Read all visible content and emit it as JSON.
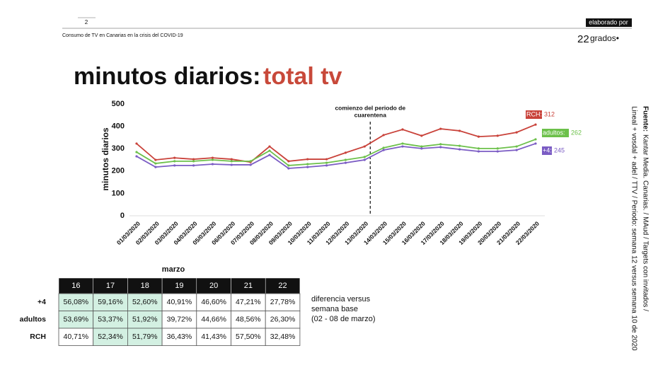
{
  "header": {
    "page_number": "2",
    "subtitle": "Consumo de TV en Canarias en la crisis del COVID-19",
    "credit": "elaborado por",
    "brand_number": "22",
    "brand_text": "grados•"
  },
  "title": {
    "prefix": "minutos diarios:",
    "highlight": "total tv"
  },
  "chart_data": {
    "type": "line",
    "ylabel": "minutos diarios",
    "categories": [
      "01/03/2020",
      "02/03/2020",
      "03/03/2020",
      "04/03/2020",
      "05/03/2020",
      "06/03/2020",
      "07/03/2020",
      "08/03/2020",
      "09/03/2020",
      "10/03/2020",
      "11/03/2020",
      "12/03/2020",
      "13/03/2020",
      "14/03/2020",
      "15/03/2020",
      "16/03/2020",
      "17/03/2020",
      "18/03/2020",
      "19/03/2020",
      "20/03/2020",
      "21/03/2020",
      "22/03/2020"
    ],
    "series": [
      {
        "name": "RCH:",
        "color": "#c9423a",
        "summary_value": 312,
        "values": [
          323,
          250,
          259,
          253,
          259,
          253,
          240,
          310,
          244,
          253,
          253,
          282,
          310,
          361,
          386,
          358,
          389,
          380,
          354,
          358,
          373,
          408
        ]
      },
      {
        "name": "adultos:",
        "color": "#6cc04a",
        "summary_value": 262,
        "values": [
          285,
          234,
          244,
          244,
          250,
          244,
          244,
          291,
          225,
          231,
          237,
          250,
          263,
          304,
          323,
          310,
          320,
          313,
          301,
          301,
          310,
          342
        ]
      },
      {
        "name": "+4:",
        "color": "#7b5cc4",
        "summary_value": 245,
        "values": [
          266,
          218,
          225,
          225,
          231,
          228,
          228,
          272,
          212,
          218,
          225,
          237,
          250,
          294,
          310,
          301,
          307,
          297,
          288,
          288,
          294,
          323
        ]
      }
    ],
    "ylim": [
      0,
      500
    ],
    "yticks": [
      0,
      100,
      200,
      300,
      400,
      500
    ],
    "grid": false,
    "annotation": {
      "category": "13/03/2020",
      "lines": [
        "comienzo del periodo de",
        "cuarentena"
      ]
    }
  },
  "table": {
    "title": "marzo",
    "columns": [
      "16",
      "17",
      "18",
      "19",
      "20",
      "21",
      "22"
    ],
    "rows": [
      {
        "label": "+4",
        "cells": [
          "56,08%",
          "59,16%",
          "52,60%",
          "40,91%",
          "46,60%",
          "47,21%",
          "27,78%"
        ],
        "highlighted": [
          true,
          true,
          true,
          false,
          false,
          false,
          false
        ]
      },
      {
        "label": "adultos",
        "cells": [
          "53,69%",
          "53,37%",
          "51,92%",
          "39,72%",
          "44,66%",
          "48,56%",
          "26,30%"
        ],
        "highlighted": [
          true,
          true,
          true,
          false,
          false,
          false,
          false
        ]
      },
      {
        "label": "RCH",
        "cells": [
          "40,71%",
          "52,34%",
          "51,79%",
          "36,43%",
          "41,43%",
          "57,50%",
          "32,48%"
        ],
        "highlighted": [
          false,
          true,
          true,
          false,
          false,
          false,
          false
        ]
      }
    ]
  },
  "note": [
    "diferencia versus",
    "semana base",
    "(02 - 08 de marzo)"
  ],
  "source": {
    "label": "Fuente:",
    "lines": [
      "Kantar Media. Canarias. / MAud / Targets con invitados /",
      "Lineal + vosdal + adel / TTV / Periodo: semana 12 versus semana 10 de 2020"
    ]
  }
}
